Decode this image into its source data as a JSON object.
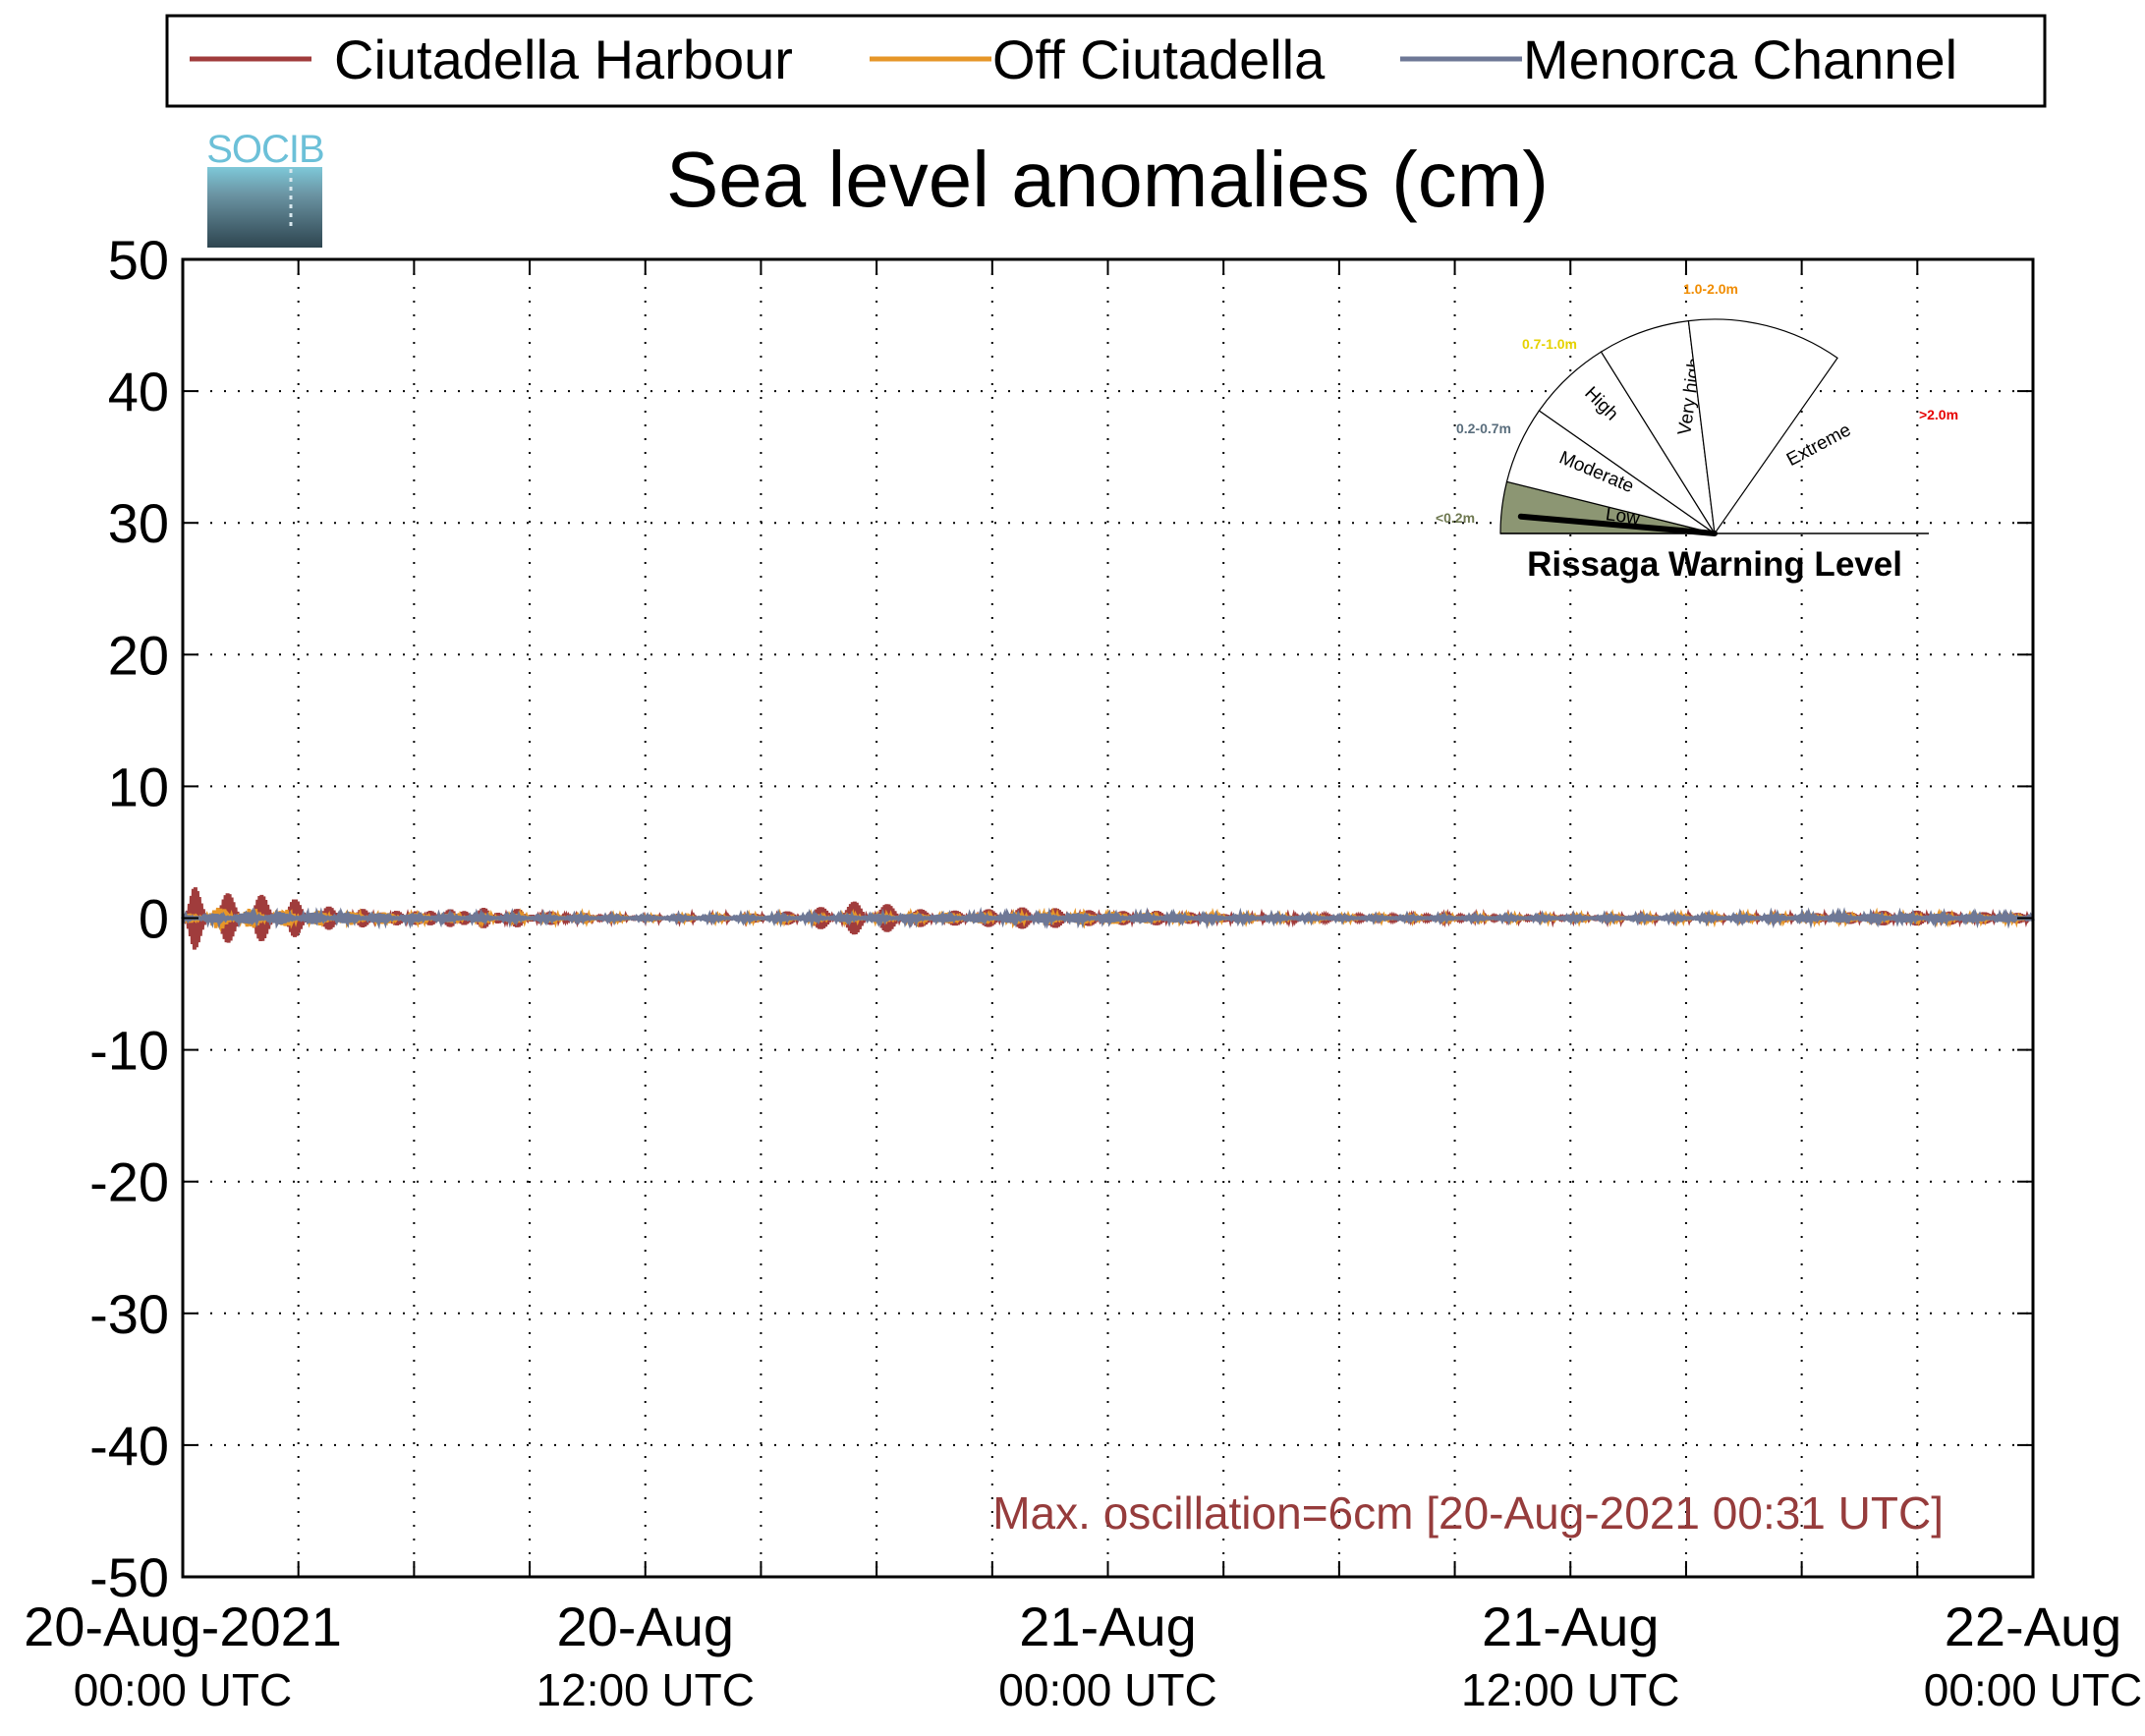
{
  "chart_data": {
    "type": "line",
    "title": "Sea level anomalies (cm)",
    "logo_text": "SOCIB",
    "ylim": [
      -50,
      50
    ],
    "yticks": [
      50,
      40,
      30,
      20,
      10,
      0,
      -10,
      -20,
      -30,
      -40,
      -50
    ],
    "xlim_hours": [
      0,
      48
    ],
    "x_tick_labels": [
      {
        "hour": 0,
        "date": "20-Aug-2021",
        "time": "00:00 UTC"
      },
      {
        "hour": 12,
        "date": "20-Aug",
        "time": "12:00 UTC"
      },
      {
        "hour": 24,
        "date": "21-Aug",
        "time": "00:00 UTC"
      },
      {
        "hour": 36,
        "date": "21-Aug",
        "time": "12:00 UTC"
      },
      {
        "hour": 48,
        "date": "22-Aug",
        "time": "00:00 UTC"
      }
    ],
    "x_minor_every_hours": 3,
    "grid": true,
    "legend_position": "top",
    "series": [
      {
        "name": "Ciutadella Harbour",
        "color": "#a03c3c",
        "envelope": [
          [
            0,
            0.3
          ],
          [
            0.3,
            3.0
          ],
          [
            1.0,
            2.5
          ],
          [
            1.8,
            2.6
          ],
          [
            2.8,
            2.4
          ],
          [
            3.5,
            1.6
          ],
          [
            5.5,
            1.2
          ],
          [
            7.5,
            1.6
          ],
          [
            8.5,
            1.3
          ],
          [
            10,
            0.6
          ],
          [
            12,
            0.3
          ],
          [
            14.5,
            0.3
          ],
          [
            16,
            0.6
          ],
          [
            17.5,
            1.3
          ],
          [
            18.5,
            1.0
          ],
          [
            19.5,
            0.5
          ],
          [
            21,
            0.7
          ],
          [
            22,
            0.9
          ],
          [
            24,
            0.6
          ],
          [
            25.5,
            0.7
          ],
          [
            26.5,
            0.5
          ],
          [
            28,
            0.3
          ],
          [
            30,
            0.2
          ],
          [
            33,
            0.3
          ],
          [
            36,
            0.4
          ],
          [
            39,
            0.3
          ],
          [
            41,
            0.3
          ],
          [
            43,
            0.4
          ],
          [
            44.5,
            0.6
          ],
          [
            46,
            0.5
          ],
          [
            48,
            0.4
          ]
        ]
      },
      {
        "name": "Off Ciutadella",
        "color": "#e69628",
        "envelope": [
          [
            0,
            0.3
          ],
          [
            1,
            0.9
          ],
          [
            3,
            0.6
          ],
          [
            6,
            0.4
          ],
          [
            10,
            0.3
          ],
          [
            12,
            0.15
          ],
          [
            17,
            0.3
          ],
          [
            19,
            0.4
          ],
          [
            24,
            0.5
          ],
          [
            28,
            0.2
          ],
          [
            34,
            0.2
          ],
          [
            40,
            0.25
          ],
          [
            44,
            0.4
          ],
          [
            48,
            0.3
          ]
        ]
      },
      {
        "name": "Menorca Channel",
        "color": "#6e7896",
        "envelope": [
          [
            0,
            0.2
          ],
          [
            2,
            0.5
          ],
          [
            6,
            0.3
          ],
          [
            12,
            0.15
          ],
          [
            19,
            0.3
          ],
          [
            24,
            0.35
          ],
          [
            30,
            0.15
          ],
          [
            40,
            0.2
          ],
          [
            44,
            0.35
          ],
          [
            48,
            0.25
          ]
        ]
      }
    ],
    "annotation": "Max. oscillation=6cm [20-Aug-2021 00:31 UTC]",
    "annotation_color": "#963c3c"
  },
  "gauge": {
    "title": "Rissaga Warning Level",
    "current_level": "Low",
    "sectors": [
      {
        "label": "Low",
        "range": "<0.2m",
        "range_color": "#6e7850",
        "active": true
      },
      {
        "label": "Moderate",
        "range": "0.2-0.7m",
        "range_color": "#5a6e7d",
        "active": false
      },
      {
        "label": "High",
        "range": "0.7-1.0m",
        "range_color": "#e6d200",
        "active": false
      },
      {
        "label": "Very high",
        "range": "1.0-2.0m",
        "range_color": "#f08c00",
        "active": false
      },
      {
        "label": "Extreme",
        "range": ">2.0m",
        "range_color": "#e60000",
        "active": false
      }
    ],
    "active_fill": "#8c9673"
  }
}
